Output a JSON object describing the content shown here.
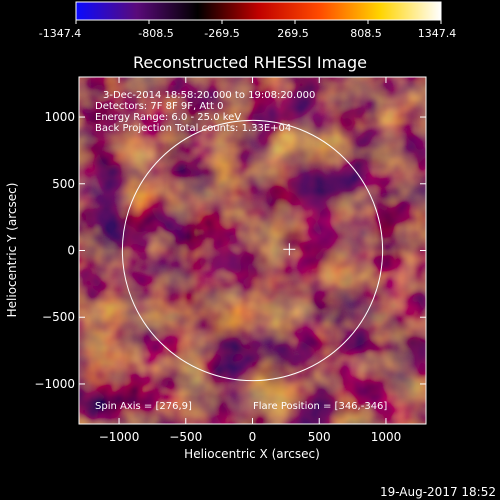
{
  "colorbar": {
    "tick_labels": [
      "-1347.4",
      "-808.5",
      "-269.5",
      "269.5",
      "808.5",
      "1347.4"
    ],
    "min": -1347.4,
    "max": 1347.4,
    "stops": [
      "#0a0aff",
      "#5a0a7a",
      "#000000",
      "#c00000",
      "#ff4a00",
      "#ffd400",
      "#ffffff"
    ]
  },
  "title": "Reconstructed RHESSI Image",
  "info": {
    "line1": "3-Dec-2014 18:58:20.000 to 19:08:20.000",
    "line2": "Detectors: 7F 8F 9F, Att 0",
    "line3": "Energy Range: 6.0 - 25.0 keV",
    "line4": "Back Projection   Total counts: 1.33E+04"
  },
  "footer": {
    "spin_axis": "Spin Axis = [276,9]",
    "flare_position": "Flare Position = [346,-346]",
    "timestamp": "19-Aug-2017 18:52"
  },
  "axes": {
    "xlabel": "Heliocentric X (arcsec)",
    "ylabel": "Heliocentric Y (arcsec)",
    "xlim": [
      -1300,
      1300
    ],
    "ylim": [
      -1300,
      1300
    ],
    "xticks": [
      -1000,
      -500,
      0,
      500,
      1000
    ],
    "yticks": [
      -1000,
      -500,
      0,
      500,
      1000
    ],
    "xtick_labels": [
      "−1000",
      "−500",
      "0",
      "500",
      "1000"
    ],
    "ytick_labels": [
      "−1000",
      "−500",
      "0",
      "500",
      "1000"
    ]
  },
  "overlay": {
    "solar_limb_radius": 975,
    "flare_marker": [
      276,
      9
    ]
  },
  "colors": {
    "background": "#000000",
    "foreground": "#ffffff"
  }
}
